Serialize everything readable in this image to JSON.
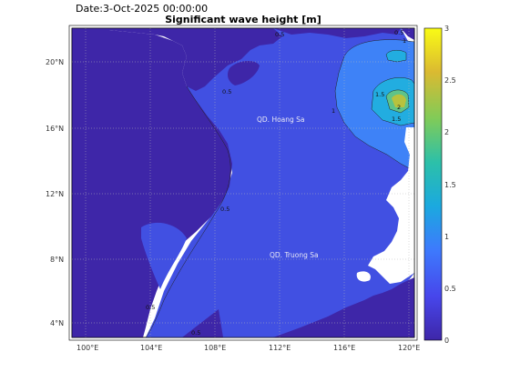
{
  "header": {
    "date_text": "Date:3-Oct-2025 00:00:00",
    "title": "Significant wave height [m]"
  },
  "axes": {
    "x_ticks": [
      "100°E",
      "104°E",
      "108°E",
      "112°E",
      "116°E",
      "120°E"
    ],
    "y_ticks": [
      "20°N",
      "16°N",
      "12°N",
      "8°N",
      "4°N"
    ]
  },
  "colorbar": {
    "ticks": [
      "3",
      "2.5",
      "2",
      "1.5",
      "1",
      "0.5",
      "0"
    ],
    "colormap": [
      "#3e26a8",
      "#4746eb",
      "#3d7afd",
      "#1ba9df",
      "#2cc0a9",
      "#80cb58",
      "#dbba31",
      "#f9fb15"
    ]
  },
  "place_labels": {
    "hoang_sa": "QD. Hoang Sa",
    "truong_sa": "QD. Truong Sa"
  },
  "contour_labels": [
    "0.5",
    "0.5",
    "1",
    "1",
    "1.5",
    "2",
    "1.5",
    "0.5",
    "0.5",
    "0.5",
    "0.5"
  ],
  "colors": {
    "land": "#3e26a8",
    "sea_low": "#4150e2",
    "sea_band_1": "#3e82f7",
    "sea_band_15": "#22ade0",
    "sea_band_2": "#5ec38a",
    "sea_peak": "#b8c23e"
  }
}
